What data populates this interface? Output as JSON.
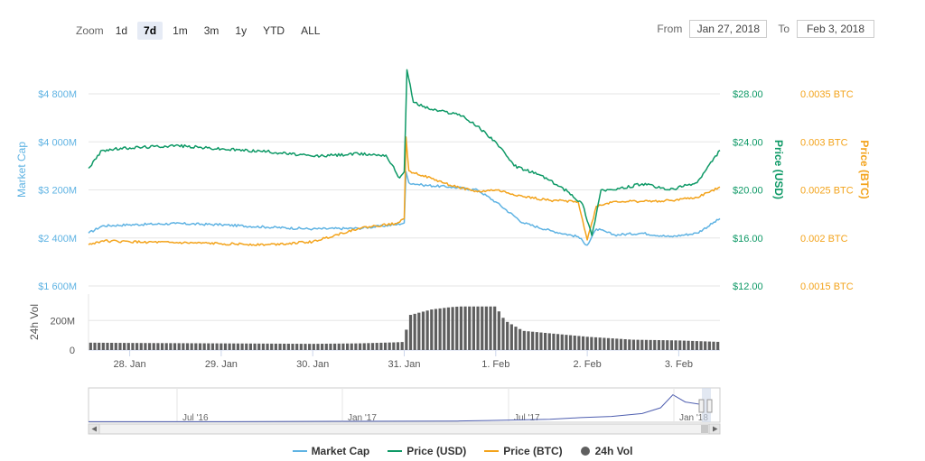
{
  "toolbar": {
    "zoom_label": "Zoom",
    "buttons": [
      "1d",
      "7d",
      "1m",
      "3m",
      "1y",
      "YTD",
      "ALL"
    ],
    "active": "7d",
    "from_label": "From",
    "from_value": "Jan 27, 2018",
    "to_label": "To",
    "to_value": "Feb 3, 2018"
  },
  "colors": {
    "market_cap": "#5fb3e3",
    "price_usd": "#0e9966",
    "price_btc": "#f3a31b",
    "volume": "#5f5f5f",
    "navigator": "#4f5fb0"
  },
  "legend": [
    "Market Cap",
    "Price (USD)",
    "Price (BTC)",
    "24h Vol"
  ],
  "chart_data": {
    "type": "line",
    "x_tick_labels": [
      "28. Jan",
      "29. Jan",
      "30. Jan",
      "31. Jan",
      "1. Feb",
      "2. Feb",
      "3. Feb"
    ],
    "x_range": [
      27.55,
      34.45
    ],
    "axes": {
      "market_cap": {
        "label": "Market Cap",
        "ticks": [
          "$1 600M",
          "$2 400M",
          "$3 200M",
          "$4 000M",
          "$4 800M"
        ],
        "tick_values": [
          1600,
          2400,
          3200,
          4000,
          4800
        ],
        "range": [
          1600,
          4800
        ]
      },
      "price_usd": {
        "label": "Price (USD)",
        "ticks": [
          "$12.00",
          "$16.00",
          "$20.00",
          "$24.00",
          "$28.00"
        ],
        "tick_values": [
          12,
          16,
          20,
          24,
          28
        ],
        "range": [
          12,
          28
        ]
      },
      "price_btc": {
        "label": "Price (BTC)",
        "ticks": [
          "0.0015 BTC",
          "0.002 BTC",
          "0.0025 BTC",
          "0.003 BTC",
          "0.0035 BTC"
        ],
        "tick_values": [
          0.0015,
          0.002,
          0.0025,
          0.003,
          0.0035
        ],
        "range": [
          0.0015,
          0.0035
        ]
      },
      "volume": {
        "label": "24h Vol",
        "ticks": [
          "0",
          "200M"
        ],
        "tick_values": [
          0,
          200
        ],
        "range": [
          0,
          330
        ]
      }
    },
    "series": [
      {
        "name": "Market Cap",
        "axis": "market_cap",
        "x": [
          27.55,
          27.7,
          28.0,
          28.5,
          29.0,
          29.5,
          30.0,
          30.5,
          30.9,
          31.0,
          31.02,
          31.05,
          31.2,
          31.5,
          31.8,
          32.0,
          32.3,
          32.6,
          32.9,
          33.0,
          33.1,
          33.3,
          33.6,
          33.9,
          34.2,
          34.45
        ],
        "y": [
          2480,
          2600,
          2620,
          2640,
          2620,
          2580,
          2550,
          2560,
          2620,
          2650,
          3500,
          3320,
          3280,
          3250,
          3200,
          3000,
          2650,
          2520,
          2420,
          2280,
          2550,
          2450,
          2480,
          2420,
          2480,
          2720
        ]
      },
      {
        "name": "Price (USD)",
        "axis": "price_usd",
        "x": [
          27.55,
          27.7,
          28.0,
          28.5,
          29.0,
          29.5,
          30.0,
          30.5,
          30.8,
          30.95,
          31.0,
          31.03,
          31.1,
          31.3,
          31.6,
          31.8,
          32.0,
          32.2,
          32.5,
          32.8,
          32.95,
          33.05,
          33.15,
          33.3,
          33.6,
          33.9,
          34.2,
          34.45
        ],
        "y": [
          21.8,
          23.3,
          23.5,
          23.7,
          23.4,
          23.2,
          22.8,
          23.0,
          22.9,
          21.0,
          21.5,
          30.0,
          27.3,
          26.7,
          26.3,
          25.3,
          24.0,
          22.0,
          21.2,
          19.8,
          18.8,
          16.2,
          20.0,
          20.0,
          20.5,
          20.0,
          20.6,
          23.3
        ]
      },
      {
        "name": "Price (BTC)",
        "axis": "price_btc",
        "x": [
          27.55,
          27.7,
          28.0,
          28.5,
          29.0,
          29.5,
          30.0,
          30.5,
          30.9,
          31.0,
          31.02,
          31.05,
          31.2,
          31.5,
          31.8,
          32.0,
          32.3,
          32.6,
          32.9,
          33.0,
          33.1,
          33.3,
          33.6,
          33.9,
          34.2,
          34.45
        ],
        "y": [
          0.00193,
          0.00197,
          0.00196,
          0.00195,
          0.00194,
          0.00193,
          0.00196,
          0.0021,
          0.00215,
          0.0022,
          0.00305,
          0.0027,
          0.00265,
          0.00255,
          0.00248,
          0.0025,
          0.00243,
          0.00239,
          0.00238,
          0.00198,
          0.00233,
          0.00238,
          0.00238,
          0.00239,
          0.00242,
          0.00253
        ]
      },
      {
        "name": "24h Vol",
        "axis": "volume",
        "type": "column",
        "x": [
          27.55,
          28.0,
          29.0,
          30.0,
          30.5,
          30.9,
          31.0,
          31.05,
          31.3,
          31.5,
          31.6,
          32.0,
          32.1,
          32.3,
          33.0,
          33.5,
          34.0,
          34.45
        ],
        "y": [
          50,
          48,
          45,
          42,
          45,
          52,
          55,
          235,
          275,
          290,
          295,
          295,
          200,
          130,
          90,
          70,
          65,
          55
        ]
      }
    ],
    "navigator": {
      "labels": [
        "Jul '16",
        "Jan '17",
        "Jul '17",
        "Jan '18"
      ],
      "x": [
        0,
        0.2,
        0.4,
        0.6,
        0.65,
        0.75,
        0.8,
        0.85,
        0.9,
        0.93,
        0.95,
        0.97,
        1.0
      ],
      "y": [
        0.02,
        0.02,
        0.03,
        0.04,
        0.06,
        0.1,
        0.16,
        0.2,
        0.3,
        0.5,
        0.95,
        0.7,
        0.6
      ]
    }
  }
}
